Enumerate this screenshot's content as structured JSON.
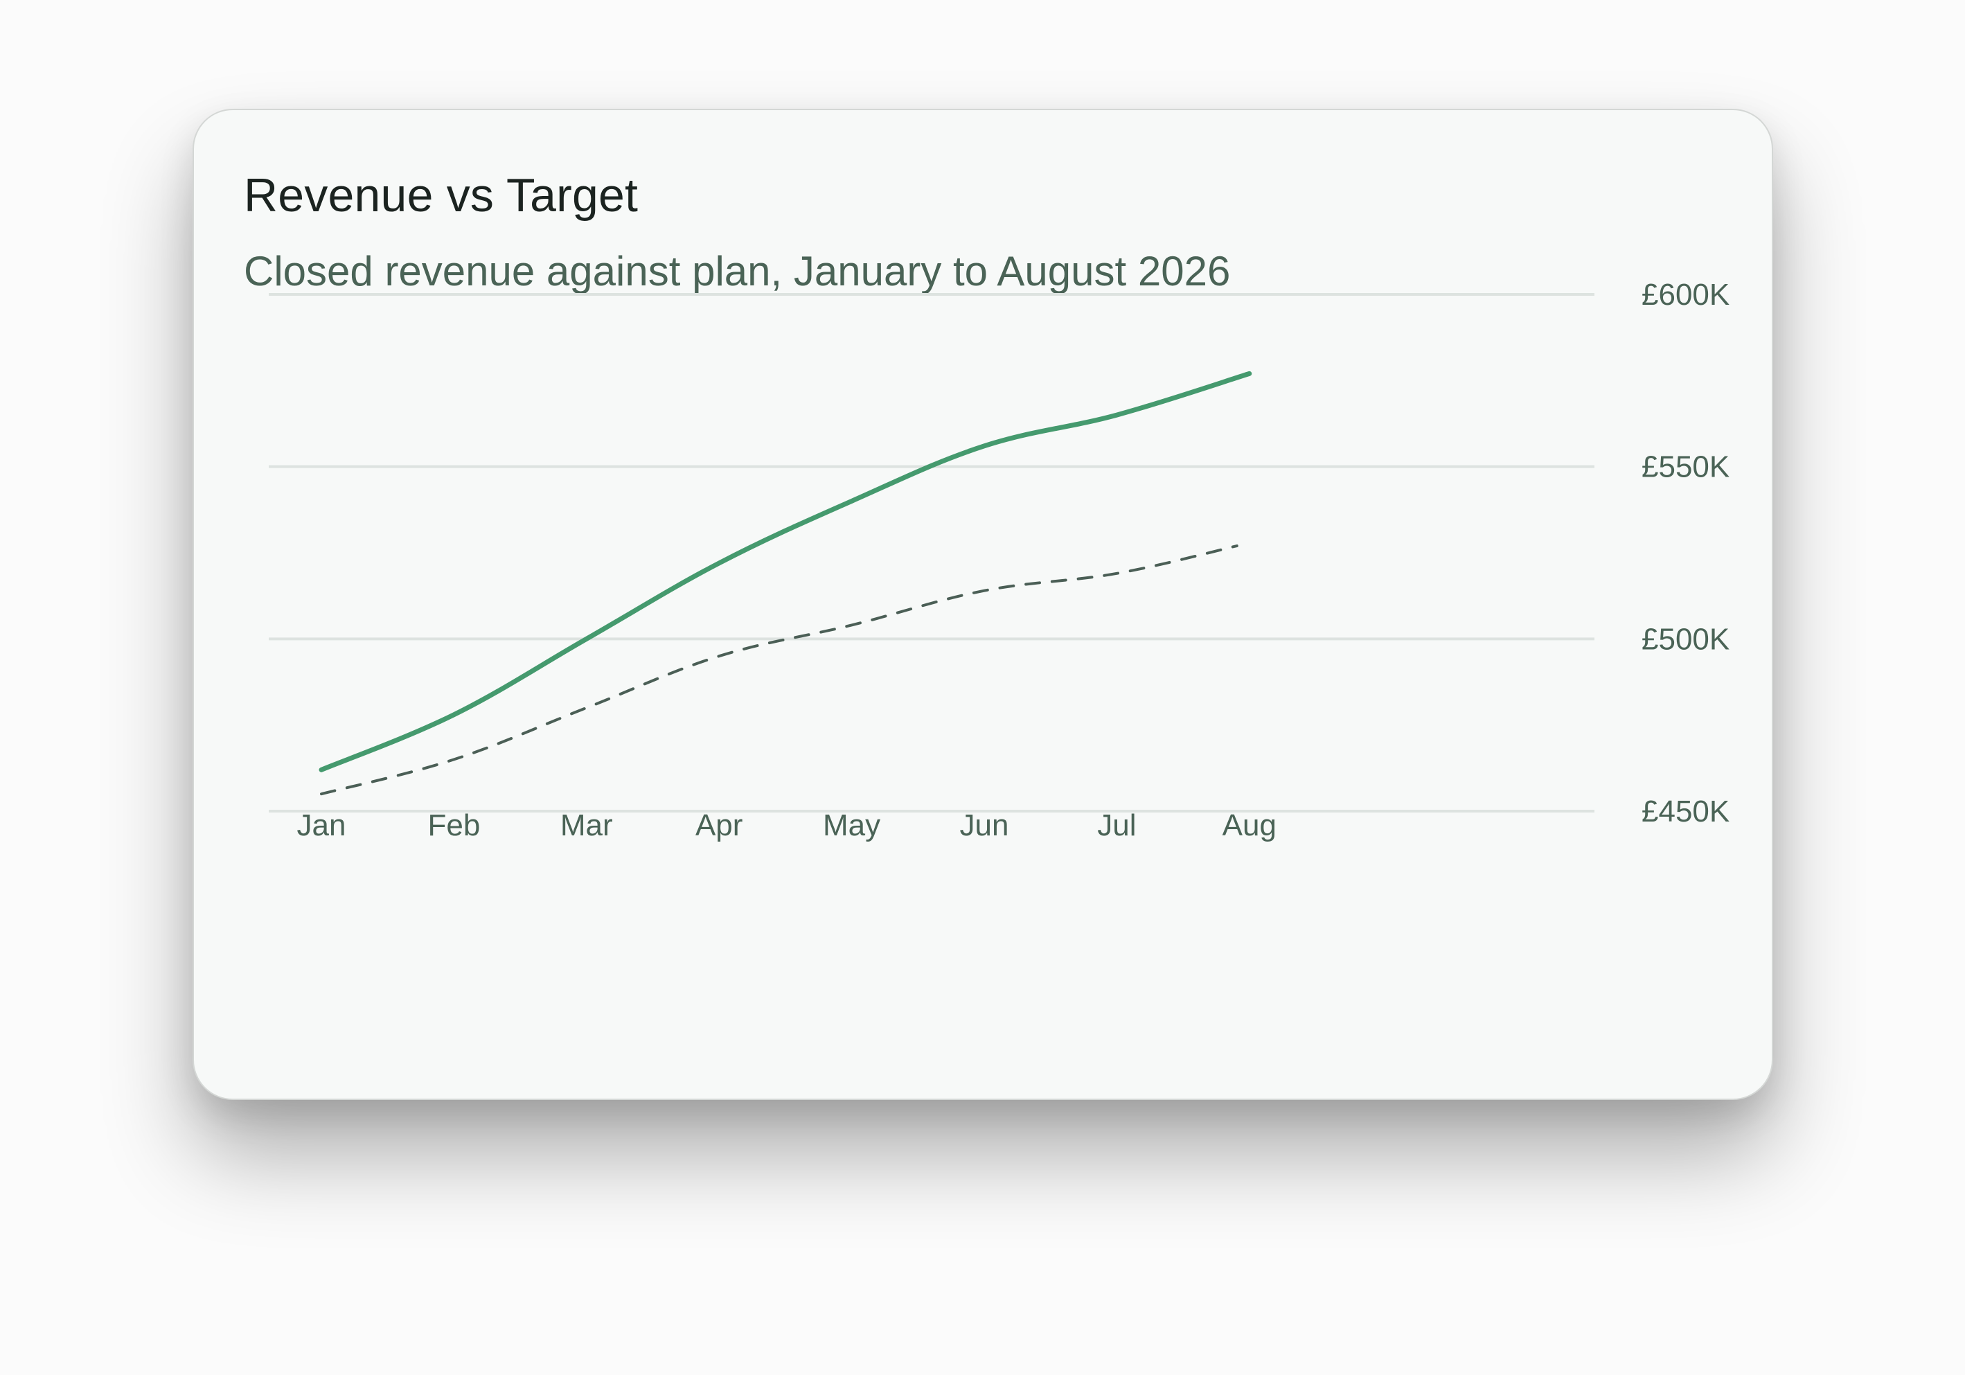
{
  "card": {
    "title": "Revenue vs Target",
    "subtitle": "Closed revenue against plan, January to August 2026"
  },
  "chart_data": {
    "type": "line",
    "categories": [
      "Jan",
      "Feb",
      "Mar",
      "Apr",
      "May",
      "Jun",
      "Jul",
      "Aug"
    ],
    "series": [
      {
        "values": [
          462,
          478,
          500,
          522,
          540,
          556,
          565,
          577
        ],
        "color": "#459a6e",
        "style": "solid"
      },
      {
        "values": [
          455,
          465,
          480,
          495,
          504,
          514,
          519,
          527
        ],
        "color": "#4b5f56",
        "style": "dashed"
      }
    ],
    "title": "Revenue vs Target",
    "subtitle": "Closed revenue against plan, January to August 2026",
    "xlabel": "",
    "ylabel": "",
    "y_ticks": [
      450,
      500,
      550,
      600
    ],
    "y_tick_labels": [
      "£450K",
      "£500K",
      "£550K",
      "£600K"
    ],
    "ylim": [
      450,
      600
    ],
    "y_axis_position": "right",
    "grid": true,
    "legend": "none",
    "colors": {
      "gridline": "#dde3e0",
      "tick_text": "#4a6356"
    }
  }
}
